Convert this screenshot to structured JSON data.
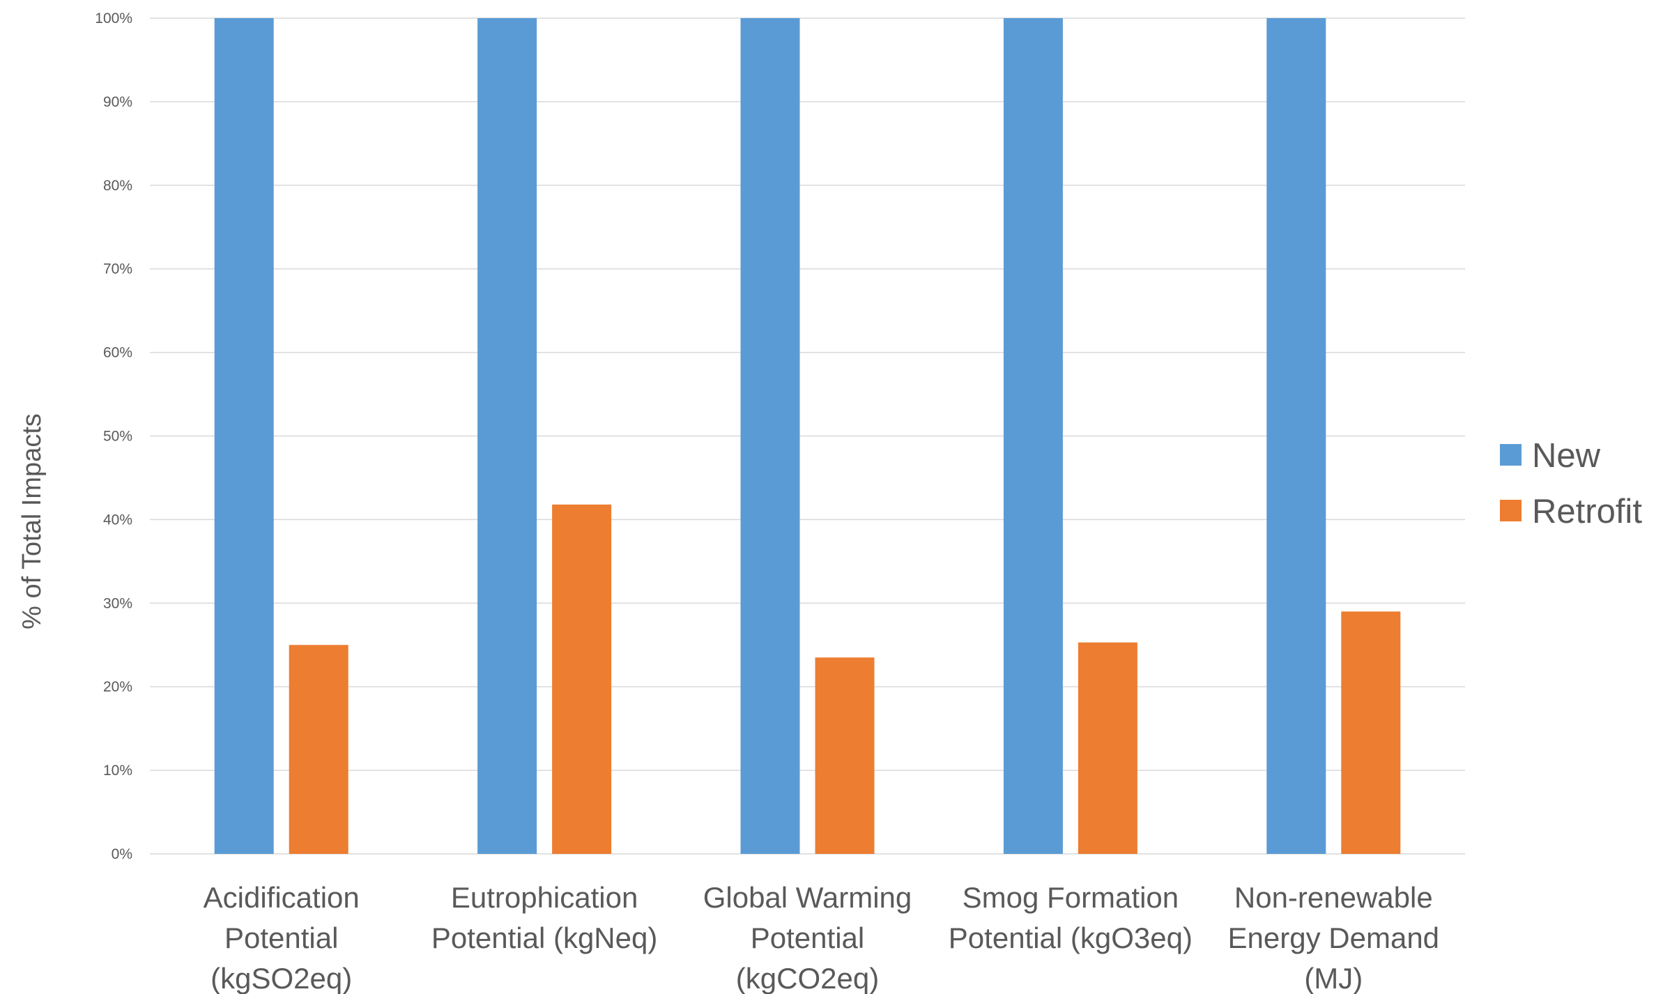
{
  "chart_data": {
    "type": "bar",
    "title": "",
    "xlabel": "",
    "ylabel": "% of Total Impacts",
    "ylim": [
      0,
      100
    ],
    "yticks": [
      "0%",
      "10%",
      "20%",
      "30%",
      "40%",
      "50%",
      "60%",
      "70%",
      "80%",
      "90%",
      "100%"
    ],
    "grid": true,
    "legend_position": "right",
    "categories": [
      [
        "Acidification",
        "Potential",
        "(kgSO2eq)"
      ],
      [
        "Eutrophication",
        "Potential (kgNeq)"
      ],
      [
        "Global Warming",
        "Potential",
        "(kgCO2eq)"
      ],
      [
        "Smog Formation",
        "Potential (kgO3eq)"
      ],
      [
        "Non-renewable",
        "Energy Demand",
        "(MJ)"
      ]
    ],
    "series": [
      {
        "name": "New",
        "color": "#5b9bd5",
        "values": [
          100,
          100,
          100,
          100,
          100
        ]
      },
      {
        "name": "Retrofit",
        "color": "#ed7d31",
        "values": [
          25,
          41.8,
          23.5,
          25.3,
          29
        ]
      }
    ]
  }
}
